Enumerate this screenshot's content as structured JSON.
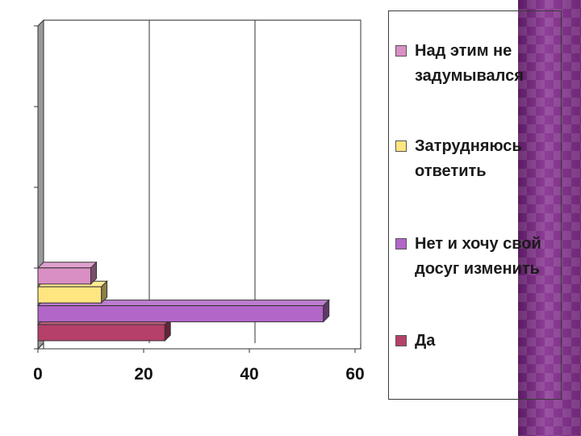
{
  "chart_data": {
    "type": "bar",
    "orientation": "horizontal",
    "style": "3d",
    "xlim": [
      0,
      60
    ],
    "xticks": [
      "0",
      "20",
      "40",
      "60"
    ],
    "grid": true,
    "legend_position": "right",
    "series": [
      {
        "name": "Да",
        "value": 24,
        "color": "#b5406a"
      },
      {
        "name": "Нет и хочу свой досуг изменить",
        "value": 54,
        "color": "#b266c8"
      },
      {
        "name": "Затрудняюсь ответить",
        "value": 12,
        "color": "#ffe680"
      },
      {
        "name": "Над этим не задумывался",
        "value": 10,
        "color": "#d98fc4"
      }
    ]
  },
  "legend": {
    "items": [
      {
        "label": "Над этим не задумывался",
        "color": "#d98fc4"
      },
      {
        "label": "Затрудняюсь ответить",
        "color": "#ffe680"
      },
      {
        "label": "Нет и хочу свой досуг изменить",
        "color": "#b266c8"
      },
      {
        "label": "Да",
        "color": "#b5406a"
      }
    ]
  }
}
